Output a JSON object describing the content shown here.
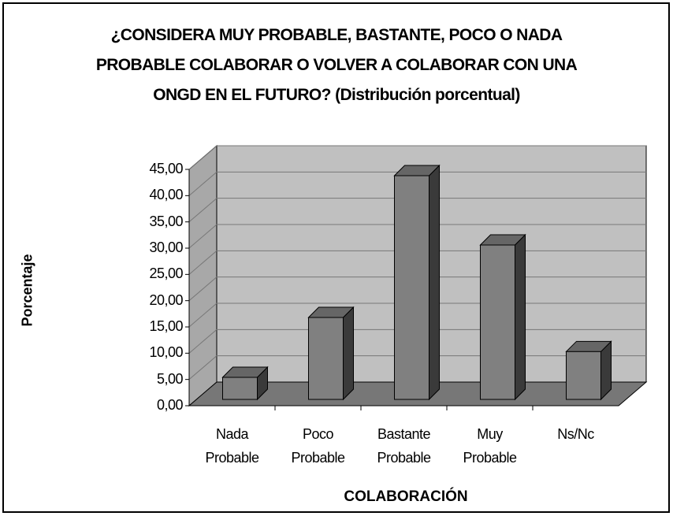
{
  "chart_data": {
    "type": "bar3d",
    "title": "¿CONSIDERA MUY PROBABLE, BASTANTE, POCO O NADA PROBABLE COLABORAR O VOLVER A COLABORAR CON UNA ONGD EN EL FUTURO? (Distribución porcentual)",
    "y_label": "Porcentaje",
    "x_label": "COLABORACIÓN",
    "categories": [
      "Nada Probable",
      "Poco Probable",
      "Bastante Probable",
      "Muy Probable",
      "Ns/Nc"
    ],
    "values": [
      4.2,
      15.6,
      42.6,
      29.4,
      9.1
    ],
    "color": "#808080",
    "ylim": [
      0,
      45
    ],
    "yticks": [
      {
        "value": 0,
        "label": "0,00"
      },
      {
        "value": 5,
        "label": "5,00"
      },
      {
        "value": 10,
        "label": "10,00"
      },
      {
        "value": 15,
        "label": "15,00"
      },
      {
        "value": 20,
        "label": "20,00"
      },
      {
        "value": 25,
        "label": "25,00"
      },
      {
        "value": 30,
        "label": "30,00"
      },
      {
        "value": 35,
        "label": "35,00"
      },
      {
        "value": 40,
        "label": "40,00"
      },
      {
        "value": 45,
        "label": "45,00"
      }
    ],
    "grid": true
  }
}
